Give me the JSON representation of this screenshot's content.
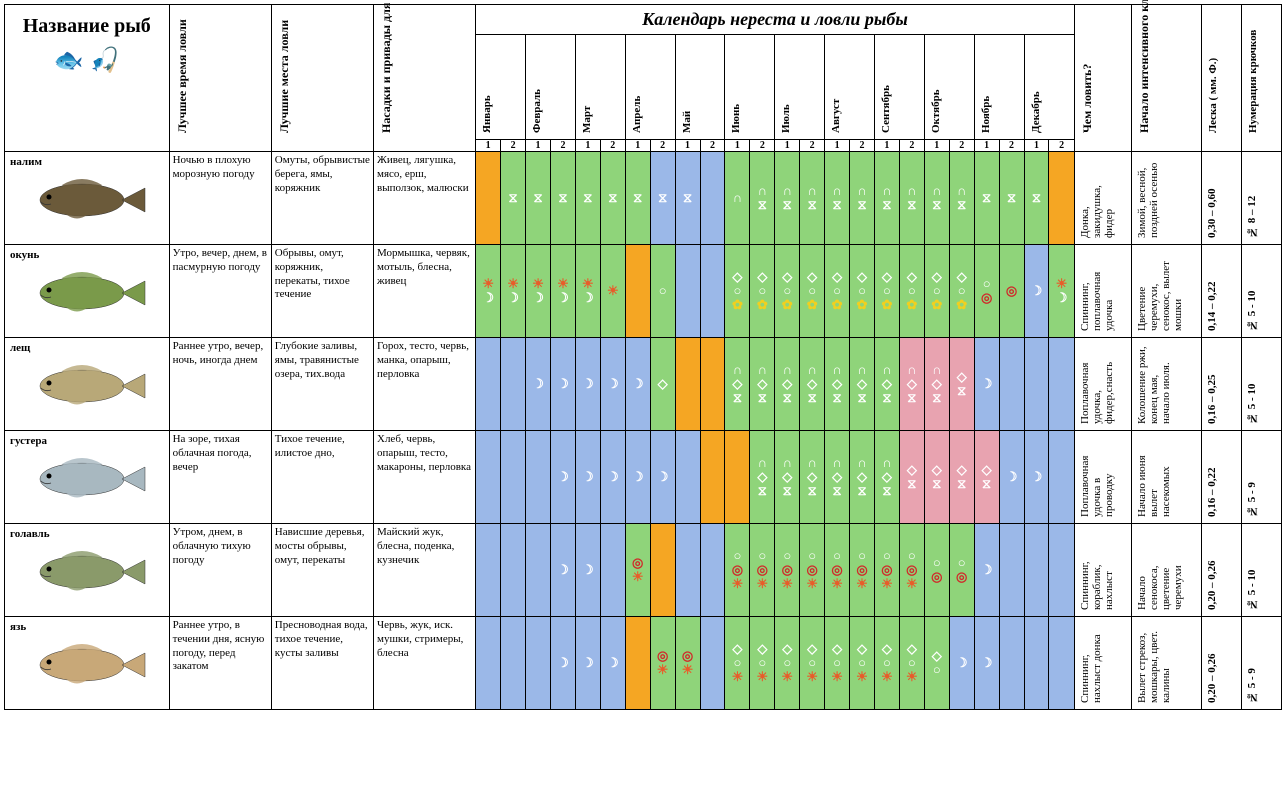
{
  "header": {
    "name": "Название рыб",
    "best_time": "Лучшее время ловли",
    "best_place": "Лучшие места ловли",
    "bait": "Насадки и привады для ловли рыбы",
    "calendar_title": "Календарь нереста и ловли рыбы",
    "months": [
      "Январь",
      "Февраль",
      "Март",
      "Апрель",
      "Май",
      "Июнь",
      "Июль",
      "Август",
      "Сентябрь",
      "Октябрь",
      "Ноябрь",
      "Декабрь"
    ],
    "half1": "1",
    "half2": "2",
    "tackle": "Чем ловить?",
    "intensive": "Начало интенсивного клева",
    "line": "Леска ( мм. Ф.)",
    "hooks": "Нумерация крючков"
  },
  "colors": {
    "blue": "#9bb8e8",
    "green": "#8fd47a",
    "orange": "#f5a623",
    "pink": "#e8a3b0"
  },
  "symbols": {
    "moon": "☽",
    "sun": "☀",
    "hourglass": "⧖",
    "arch": "∩",
    "diamond": "◇",
    "circle": "○",
    "target": "◎",
    "flower": "✿"
  },
  "fish": [
    {
      "name": "налим",
      "svg_color": "#6b5a3a",
      "best_time": "Ночью в плохую морозную погоду",
      "best_place": "Омуты, обрывистые берега, ямы, коряжник",
      "bait": "Живец, лягушка, мясо, ерш, выползок, малюски",
      "tackle": "Донка, закидушка, фидер",
      "intensive": "Зимой, весной, поздней осенью",
      "line": "0,30 – 0,60",
      "hooks": "№ 8 – 12",
      "calendar": [
        {
          "bg": "orange",
          "s": []
        },
        {
          "bg": "green",
          "s": [
            "hourglass"
          ]
        },
        {
          "bg": "green",
          "s": [
            "hourglass"
          ]
        },
        {
          "bg": "green",
          "s": [
            "hourglass"
          ]
        },
        {
          "bg": "green",
          "s": [
            "hourglass"
          ]
        },
        {
          "bg": "green",
          "s": [
            "hourglass"
          ]
        },
        {
          "bg": "green",
          "s": [
            "hourglass"
          ]
        },
        {
          "bg": "blue",
          "s": [
            "hourglass"
          ]
        },
        {
          "bg": "blue",
          "s": [
            "hourglass"
          ]
        },
        {
          "bg": "blue",
          "s": []
        },
        {
          "bg": "green",
          "s": [
            "arch"
          ]
        },
        {
          "bg": "green",
          "s": [
            "arch",
            "hourglass"
          ]
        },
        {
          "bg": "green",
          "s": [
            "arch",
            "hourglass"
          ]
        },
        {
          "bg": "green",
          "s": [
            "arch",
            "hourglass"
          ]
        },
        {
          "bg": "green",
          "s": [
            "arch",
            "hourglass"
          ]
        },
        {
          "bg": "green",
          "s": [
            "arch",
            "hourglass"
          ]
        },
        {
          "bg": "green",
          "s": [
            "arch",
            "hourglass"
          ]
        },
        {
          "bg": "green",
          "s": [
            "arch",
            "hourglass"
          ]
        },
        {
          "bg": "green",
          "s": [
            "arch",
            "hourglass"
          ]
        },
        {
          "bg": "green",
          "s": [
            "arch",
            "hourglass"
          ]
        },
        {
          "bg": "green",
          "s": [
            "hourglass"
          ]
        },
        {
          "bg": "green",
          "s": [
            "hourglass"
          ]
        },
        {
          "bg": "green",
          "s": [
            "hourglass"
          ]
        },
        {
          "bg": "orange",
          "s": []
        }
      ]
    },
    {
      "name": "окунь",
      "svg_color": "#7a9a4a",
      "best_time": "Утро, вечер, днем, в пасмурную погоду",
      "best_place": "Обрывы, омут, коряжник, перекаты, тихое течение",
      "bait": "Мормышка, червяк, мотыль, блесна, живец",
      "tackle": "Спиннинг, поплавочная удочка",
      "intensive": "Цветение черемухи, сенокос, вылет мошки",
      "line": "0,14 – 0,22",
      "hooks": "№ 5 - 10",
      "calendar": [
        {
          "bg": "green",
          "s": [
            "sun",
            "moon"
          ]
        },
        {
          "bg": "green",
          "s": [
            "sun",
            "moon"
          ]
        },
        {
          "bg": "green",
          "s": [
            "sun",
            "moon"
          ]
        },
        {
          "bg": "green",
          "s": [
            "sun",
            "moon"
          ]
        },
        {
          "bg": "green",
          "s": [
            "sun",
            "moon"
          ]
        },
        {
          "bg": "green",
          "s": [
            "sun"
          ]
        },
        {
          "bg": "orange",
          "s": []
        },
        {
          "bg": "green",
          "s": [
            "circle"
          ]
        },
        {
          "bg": "blue",
          "s": []
        },
        {
          "bg": "blue",
          "s": []
        },
        {
          "bg": "green",
          "s": [
            "diamond",
            "circle",
            "flower"
          ]
        },
        {
          "bg": "green",
          "s": [
            "diamond",
            "circle",
            "flower"
          ]
        },
        {
          "bg": "green",
          "s": [
            "diamond",
            "circle",
            "flower"
          ]
        },
        {
          "bg": "green",
          "s": [
            "diamond",
            "circle",
            "flower"
          ]
        },
        {
          "bg": "green",
          "s": [
            "diamond",
            "circle",
            "flower"
          ]
        },
        {
          "bg": "green",
          "s": [
            "diamond",
            "circle",
            "flower"
          ]
        },
        {
          "bg": "green",
          "s": [
            "diamond",
            "circle",
            "flower"
          ]
        },
        {
          "bg": "green",
          "s": [
            "diamond",
            "circle",
            "flower"
          ]
        },
        {
          "bg": "green",
          "s": [
            "diamond",
            "circle",
            "flower"
          ]
        },
        {
          "bg": "green",
          "s": [
            "diamond",
            "circle",
            "flower"
          ]
        },
        {
          "bg": "green",
          "s": [
            "circle",
            "target"
          ]
        },
        {
          "bg": "green",
          "s": [
            "target"
          ]
        },
        {
          "bg": "blue",
          "s": [
            "moon"
          ]
        },
        {
          "bg": "green",
          "s": [
            "sun",
            "moon"
          ]
        }
      ]
    },
    {
      "name": "лещ",
      "svg_color": "#b8a878",
      "best_time": "Раннее утро, вечер, ночь, иногда днем",
      "best_place": "Глубокие заливы, ямы, травянистые озера, тих.вода",
      "bait": "Горох, тесто, червь, манка, опарыш, перловка",
      "tackle": "Поплавочная удочка, фидер,снасть",
      "intensive": "Колошение ржи, конец мая, начало июля.",
      "line": "0,16 – 0,25",
      "hooks": "№ 5 - 10",
      "calendar": [
        {
          "bg": "blue",
          "s": []
        },
        {
          "bg": "blue",
          "s": []
        },
        {
          "bg": "blue",
          "s": [
            "moon"
          ]
        },
        {
          "bg": "blue",
          "s": [
            "moon"
          ]
        },
        {
          "bg": "blue",
          "s": [
            "moon"
          ]
        },
        {
          "bg": "blue",
          "s": [
            "moon"
          ]
        },
        {
          "bg": "blue",
          "s": [
            "moon"
          ]
        },
        {
          "bg": "green",
          "s": [
            "diamond"
          ]
        },
        {
          "bg": "orange",
          "s": []
        },
        {
          "bg": "orange",
          "s": []
        },
        {
          "bg": "green",
          "s": [
            "arch",
            "diamond",
            "hourglass"
          ]
        },
        {
          "bg": "green",
          "s": [
            "arch",
            "diamond",
            "hourglass"
          ]
        },
        {
          "bg": "green",
          "s": [
            "arch",
            "diamond",
            "hourglass"
          ]
        },
        {
          "bg": "green",
          "s": [
            "arch",
            "diamond",
            "hourglass"
          ]
        },
        {
          "bg": "green",
          "s": [
            "arch",
            "diamond",
            "hourglass"
          ]
        },
        {
          "bg": "green",
          "s": [
            "arch",
            "diamond",
            "hourglass"
          ]
        },
        {
          "bg": "green",
          "s": [
            "arch",
            "diamond",
            "hourglass"
          ]
        },
        {
          "bg": "pink",
          "s": [
            "arch",
            "diamond",
            "hourglass"
          ]
        },
        {
          "bg": "pink",
          "s": [
            "arch",
            "diamond",
            "hourglass"
          ]
        },
        {
          "bg": "pink",
          "s": [
            "diamond",
            "hourglass"
          ]
        },
        {
          "bg": "blue",
          "s": [
            "moon"
          ]
        },
        {
          "bg": "blue",
          "s": []
        },
        {
          "bg": "blue",
          "s": []
        },
        {
          "bg": "blue",
          "s": []
        }
      ]
    },
    {
      "name": "густера",
      "svg_color": "#a8b8c0",
      "best_time": "На зоре, тихая облачная погода, вечер",
      "best_place": "Тихое течение, илистое дно,",
      "bait": "Хлеб, червь, опарыш, тесто, макароны, перловка",
      "tackle": "Поплавочная удочка в проводку",
      "intensive": "Начало июня вылет насекомых",
      "line": "0,16 – 0,22",
      "hooks": "№ 5 - 9",
      "calendar": [
        {
          "bg": "blue",
          "s": []
        },
        {
          "bg": "blue",
          "s": []
        },
        {
          "bg": "blue",
          "s": []
        },
        {
          "bg": "blue",
          "s": [
            "moon"
          ]
        },
        {
          "bg": "blue",
          "s": [
            "moon"
          ]
        },
        {
          "bg": "blue",
          "s": [
            "moon"
          ]
        },
        {
          "bg": "blue",
          "s": [
            "moon"
          ]
        },
        {
          "bg": "blue",
          "s": [
            "moon"
          ]
        },
        {
          "bg": "blue",
          "s": []
        },
        {
          "bg": "orange",
          "s": []
        },
        {
          "bg": "orange",
          "s": []
        },
        {
          "bg": "green",
          "s": [
            "arch",
            "diamond",
            "hourglass"
          ]
        },
        {
          "bg": "green",
          "s": [
            "arch",
            "diamond",
            "hourglass"
          ]
        },
        {
          "bg": "green",
          "s": [
            "arch",
            "diamond",
            "hourglass"
          ]
        },
        {
          "bg": "green",
          "s": [
            "arch",
            "diamond",
            "hourglass"
          ]
        },
        {
          "bg": "green",
          "s": [
            "arch",
            "diamond",
            "hourglass"
          ]
        },
        {
          "bg": "green",
          "s": [
            "arch",
            "diamond",
            "hourglass"
          ]
        },
        {
          "bg": "pink",
          "s": [
            "diamond",
            "hourglass"
          ]
        },
        {
          "bg": "pink",
          "s": [
            "diamond",
            "hourglass"
          ]
        },
        {
          "bg": "pink",
          "s": [
            "diamond",
            "hourglass"
          ]
        },
        {
          "bg": "pink",
          "s": [
            "diamond",
            "hourglass"
          ]
        },
        {
          "bg": "blue",
          "s": [
            "moon"
          ]
        },
        {
          "bg": "blue",
          "s": [
            "moon"
          ]
        },
        {
          "bg": "blue",
          "s": []
        }
      ]
    },
    {
      "name": "голавль",
      "svg_color": "#8a9a6a",
      "best_time": "Утром, днем, в облачную тихую погоду",
      "best_place": "Нависшие деревья, мосты обрывы, омут, перекаты",
      "bait": "Майский жук, блесна, поденка, кузнечик",
      "tackle": "Спиннинг, кораблик, нахлыст",
      "intensive": "Начало сенокоса, цветение черемухи",
      "line": "0,20 – 0,26",
      "hooks": "№ 5 - 10",
      "calendar": [
        {
          "bg": "blue",
          "s": []
        },
        {
          "bg": "blue",
          "s": []
        },
        {
          "bg": "blue",
          "s": []
        },
        {
          "bg": "blue",
          "s": [
            "moon"
          ]
        },
        {
          "bg": "blue",
          "s": [
            "moon"
          ]
        },
        {
          "bg": "blue",
          "s": []
        },
        {
          "bg": "green",
          "s": [
            "target",
            "sun"
          ]
        },
        {
          "bg": "orange",
          "s": []
        },
        {
          "bg": "blue",
          "s": []
        },
        {
          "bg": "blue",
          "s": []
        },
        {
          "bg": "green",
          "s": [
            "circle",
            "target",
            "sun"
          ]
        },
        {
          "bg": "green",
          "s": [
            "circle",
            "target",
            "sun"
          ]
        },
        {
          "bg": "green",
          "s": [
            "circle",
            "target",
            "sun"
          ]
        },
        {
          "bg": "green",
          "s": [
            "circle",
            "target",
            "sun"
          ]
        },
        {
          "bg": "green",
          "s": [
            "circle",
            "target",
            "sun"
          ]
        },
        {
          "bg": "green",
          "s": [
            "circle",
            "target",
            "sun"
          ]
        },
        {
          "bg": "green",
          "s": [
            "circle",
            "target",
            "sun"
          ]
        },
        {
          "bg": "green",
          "s": [
            "circle",
            "target",
            "sun"
          ]
        },
        {
          "bg": "green",
          "s": [
            "circle",
            "target"
          ]
        },
        {
          "bg": "green",
          "s": [
            "circle",
            "target"
          ]
        },
        {
          "bg": "blue",
          "s": [
            "moon"
          ]
        },
        {
          "bg": "blue",
          "s": []
        },
        {
          "bg": "blue",
          "s": []
        },
        {
          "bg": "blue",
          "s": []
        }
      ]
    },
    {
      "name": "язь",
      "svg_color": "#c8a878",
      "best_time": "Раннее утро, в течении дня, ясную погоду, перед закатом",
      "best_place": "Пресноводная вода, тихое течение, кусты заливы",
      "bait": "Червь, жук, иск. мушки, стримеры, блесна",
      "tackle": "Спиннинг, нахлыст донка",
      "intensive": "Вылет стрекоз, мошкары, цвет. калины",
      "line": "0,20 – 0,26",
      "hooks": "№ 5 - 9",
      "calendar": [
        {
          "bg": "blue",
          "s": []
        },
        {
          "bg": "blue",
          "s": []
        },
        {
          "bg": "blue",
          "s": []
        },
        {
          "bg": "blue",
          "s": [
            "moon"
          ]
        },
        {
          "bg": "blue",
          "s": [
            "moon"
          ]
        },
        {
          "bg": "blue",
          "s": [
            "moon"
          ]
        },
        {
          "bg": "orange",
          "s": []
        },
        {
          "bg": "green",
          "s": [
            "target",
            "sun"
          ]
        },
        {
          "bg": "green",
          "s": [
            "target",
            "sun"
          ]
        },
        {
          "bg": "blue",
          "s": []
        },
        {
          "bg": "green",
          "s": [
            "diamond",
            "circle",
            "sun"
          ]
        },
        {
          "bg": "green",
          "s": [
            "diamond",
            "circle",
            "sun"
          ]
        },
        {
          "bg": "green",
          "s": [
            "diamond",
            "circle",
            "sun"
          ]
        },
        {
          "bg": "green",
          "s": [
            "diamond",
            "circle",
            "sun"
          ]
        },
        {
          "bg": "green",
          "s": [
            "diamond",
            "circle",
            "sun"
          ]
        },
        {
          "bg": "green",
          "s": [
            "diamond",
            "circle",
            "sun"
          ]
        },
        {
          "bg": "green",
          "s": [
            "diamond",
            "circle",
            "sun"
          ]
        },
        {
          "bg": "green",
          "s": [
            "diamond",
            "circle",
            "sun"
          ]
        },
        {
          "bg": "green",
          "s": [
            "diamond",
            "circle"
          ]
        },
        {
          "bg": "blue",
          "s": [
            "moon"
          ]
        },
        {
          "bg": "blue",
          "s": [
            "moon"
          ]
        },
        {
          "bg": "blue",
          "s": []
        },
        {
          "bg": "blue",
          "s": []
        },
        {
          "bg": "blue",
          "s": []
        }
      ]
    }
  ]
}
